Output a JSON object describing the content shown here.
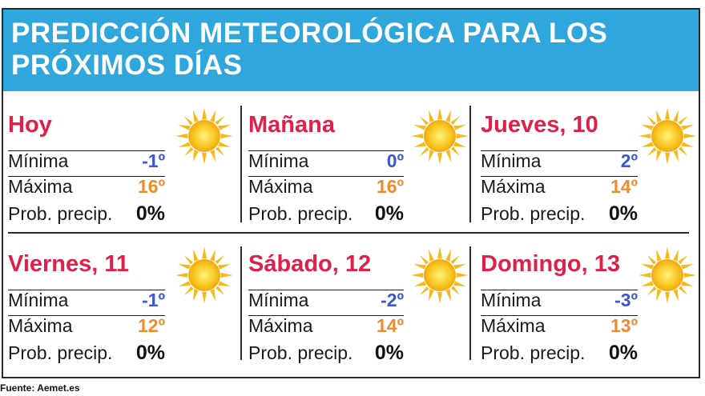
{
  "title": "PREDICCIÓN METEOROLÓGICA PARA LOS PRÓXIMOS DÍAS",
  "labels": {
    "min": "Mínima",
    "max": "Máxima",
    "prob": "Prob. precip."
  },
  "days": [
    {
      "name": "Hoy",
      "min": "-1º",
      "max": "16º",
      "prob": "0%",
      "icon": "sun-icon"
    },
    {
      "name": "Mañana",
      "min": "0º",
      "max": "16º",
      "prob": "0%",
      "icon": "sun-icon"
    },
    {
      "name": "Jueves, 10",
      "min": "2º",
      "max": "14º",
      "prob": "0%",
      "icon": "sun-icon"
    },
    {
      "name": "Viernes, 11",
      "min": "-1º",
      "max": "12º",
      "prob": "0%",
      "icon": "sun-icon"
    },
    {
      "name": "Sábado, 12",
      "min": "-2º",
      "max": "14º",
      "prob": "0%",
      "icon": "sun-icon"
    },
    {
      "name": "Domingo, 13",
      "min": "-3º",
      "max": "13º",
      "prob": "0%",
      "icon": "sun-icon"
    }
  ],
  "colors": {
    "header": "#2fa6dc",
    "day_name": "#e0204a",
    "min_value": "#3a55d8",
    "max_value": "#f08a2a",
    "sun": "#f7c51e"
  },
  "source": "Fuente: Aemet.es"
}
